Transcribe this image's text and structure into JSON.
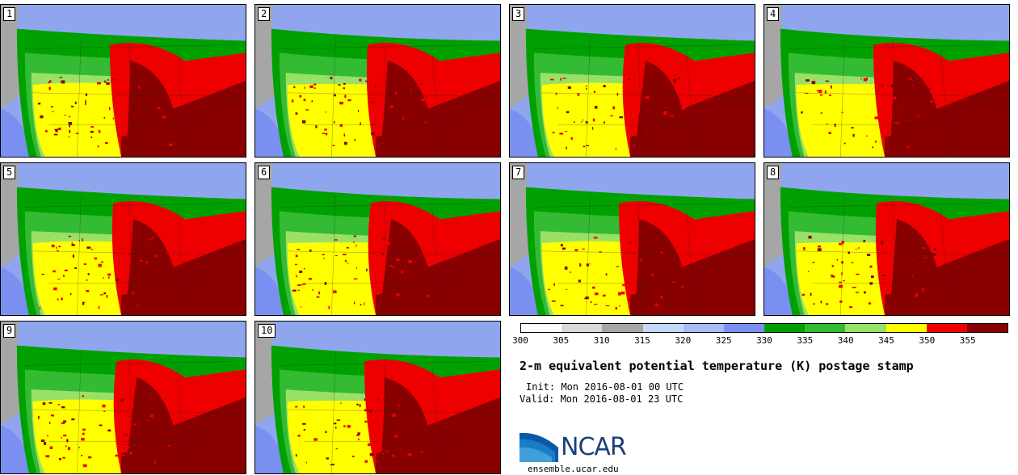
{
  "panels": [
    "1",
    "2",
    "3",
    "4",
    "5",
    "6",
    "7",
    "8",
    "9",
    "10"
  ],
  "colorbar": {
    "colors": [
      "#ffffff",
      "#d9d9d9",
      "#a6a6a6",
      "#c6d8f8",
      "#a8bbf4",
      "#7b8ff0",
      "#00a000",
      "#33bb33",
      "#99e066",
      "#ffff00",
      "#ee0000",
      "#880000"
    ],
    "labels": [
      "300",
      "305",
      "310",
      "315",
      "320",
      "325",
      "330",
      "335",
      "340",
      "345",
      "350",
      "355"
    ]
  },
  "text": {
    "title": "2-m equivalent potential temperature (K) postage stamp",
    "init": "Init: Mon 2016-08-01 00 UTC",
    "valid": "Valid: Mon 2016-08-01 23 UTC",
    "logo": "NCAR",
    "site": "ensemble.ucar.edu"
  }
}
